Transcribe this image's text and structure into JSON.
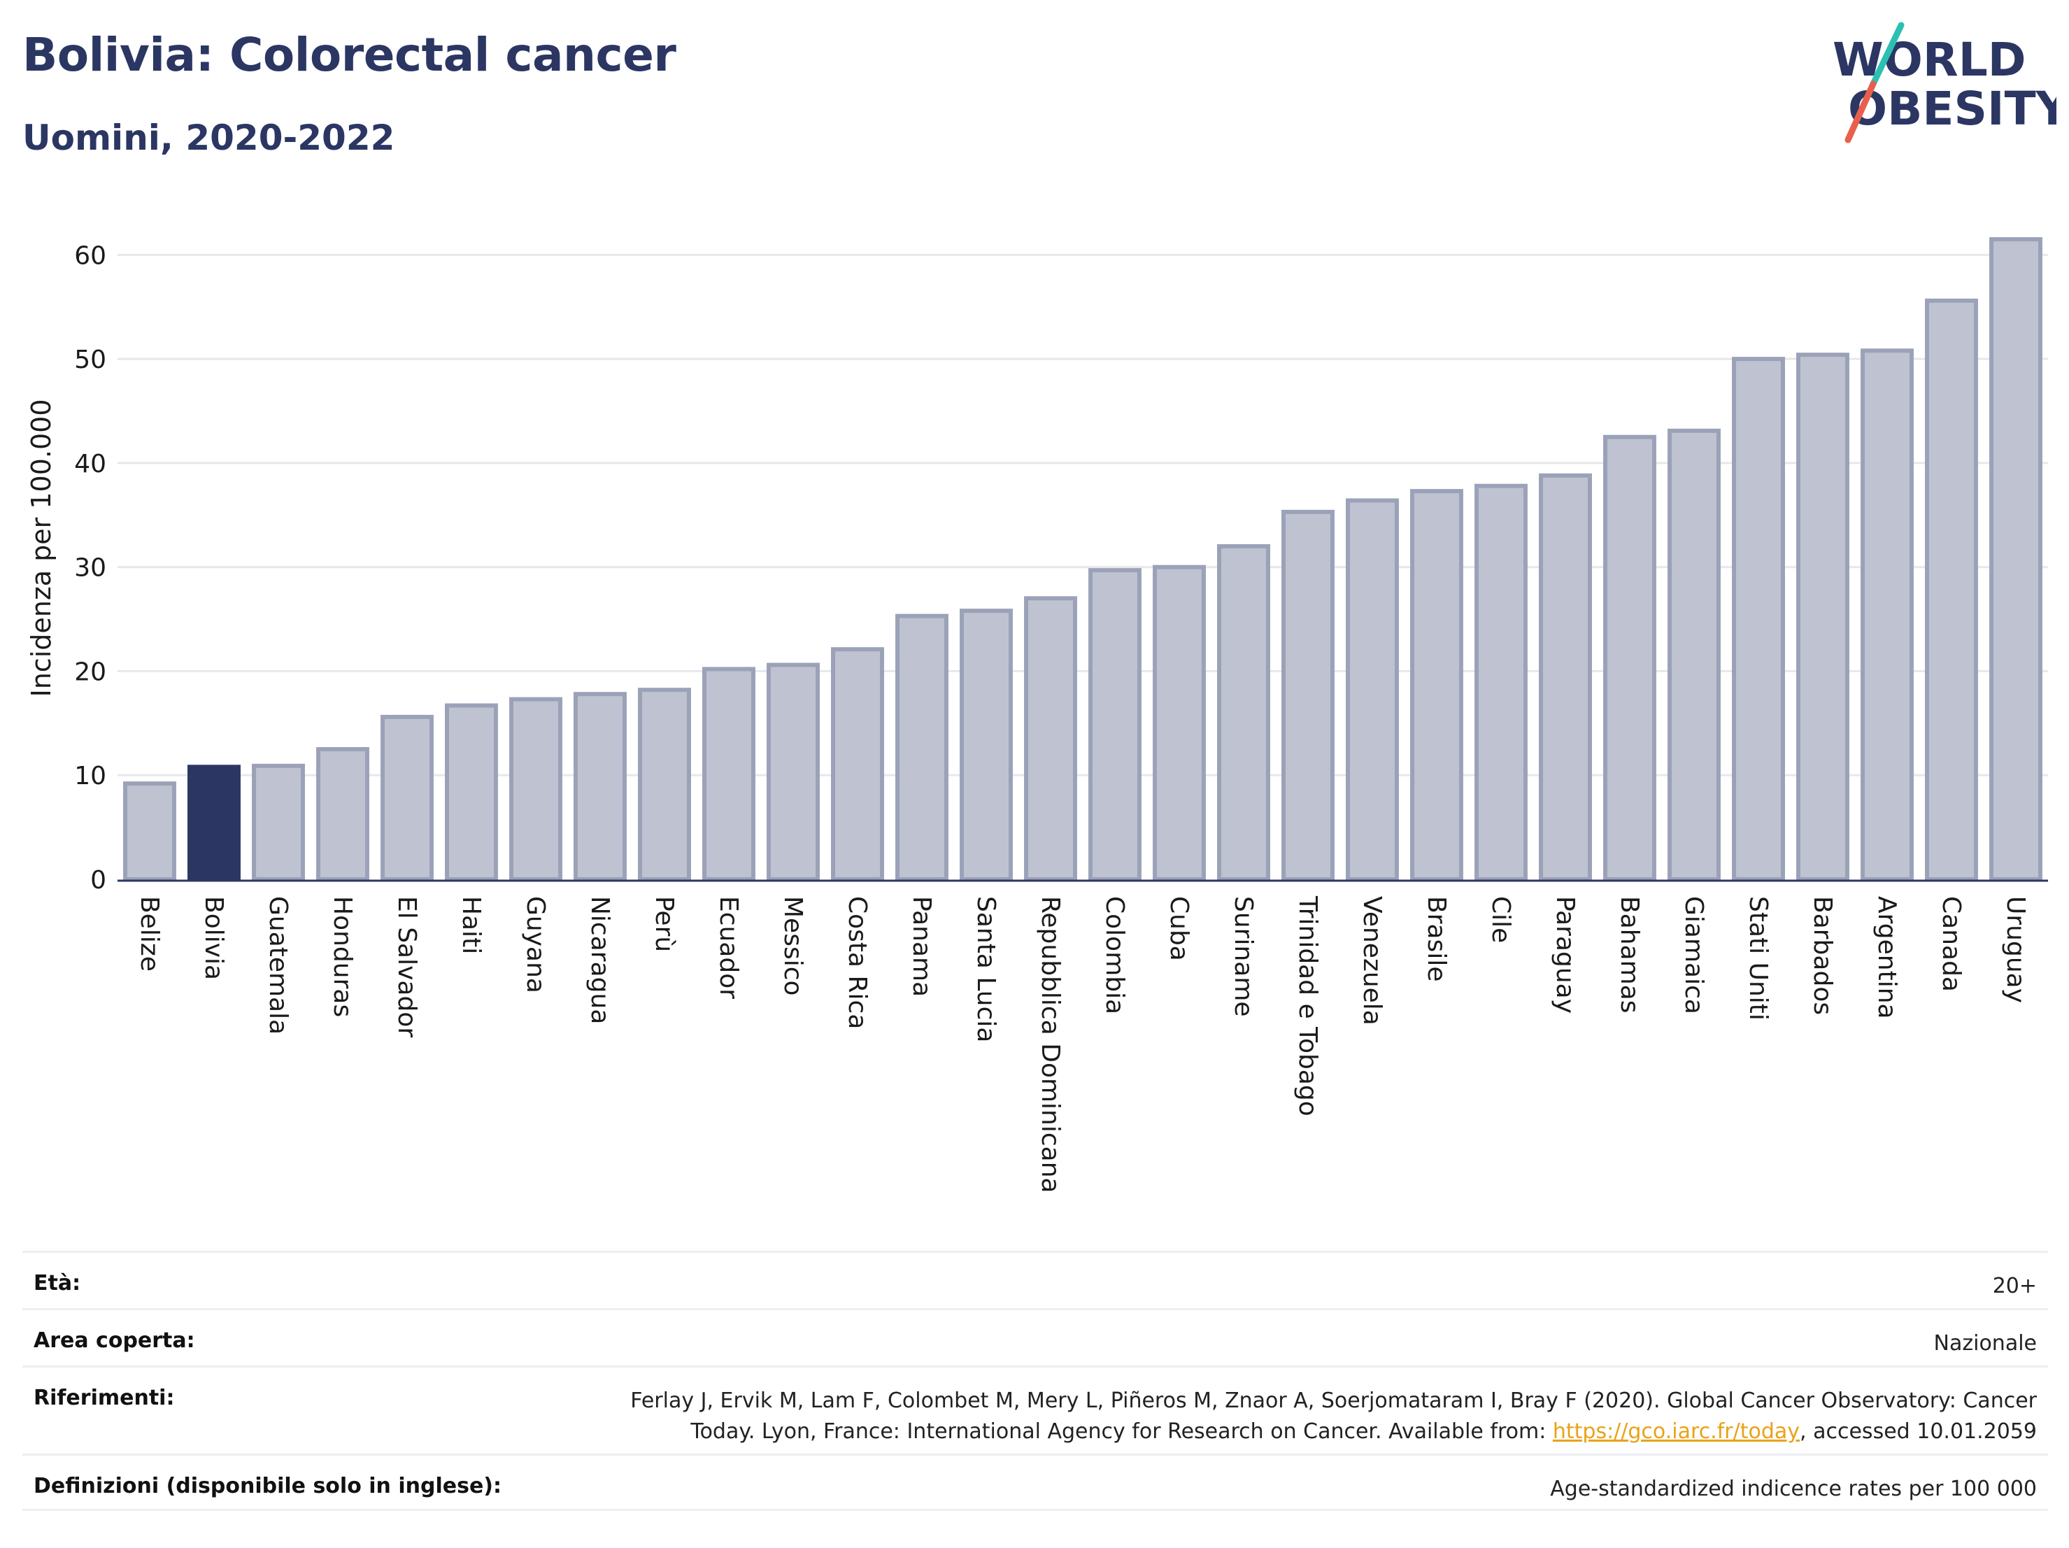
{
  "header": {
    "title": "Bolivia: Colorectal cancer",
    "subtitle": "Uomini, 2020-2022"
  },
  "logo": {
    "line1": "WORLD",
    "line2": "OBESITY",
    "accent_colors": [
      "#2cc0b3",
      "#e8604c"
    ]
  },
  "colors": {
    "highlight": "#2b3663",
    "bar_fill": "#bfc3d1",
    "bar_stroke": "#9ba2b8",
    "title": "#2b3663",
    "link": "#e8a317"
  },
  "chart_data": {
    "type": "bar",
    "ylabel": "Incidenza per 100.000",
    "ylim": [
      0,
      65
    ],
    "yticks": [
      0,
      10,
      20,
      30,
      40,
      50,
      60
    ],
    "grid": true,
    "highlight": "Bolivia",
    "categories": [
      "Belize",
      "Bolivia",
      "Guatemala",
      "Honduras",
      "El Salvador",
      "Haiti",
      "Guyana",
      "Nicaragua",
      "Perù",
      "Ecuador",
      "Messico",
      "Costa Rica",
      "Panama",
      "Santa Lucia",
      "Repubblica Dominicana",
      "Colombia",
      "Cuba",
      "Suriname",
      "Trinidad e Tobago",
      "Venezuela",
      "Brasile",
      "Cile",
      "Paraguay",
      "Bahamas",
      "Giamaica",
      "Stati Uniti",
      "Barbados",
      "Argentina",
      "Canada",
      "Uruguay"
    ],
    "values": [
      9.2,
      10.8,
      10.9,
      12.5,
      15.6,
      16.7,
      17.3,
      17.8,
      18.2,
      20.2,
      20.6,
      22.1,
      25.3,
      25.8,
      27.0,
      29.7,
      30.0,
      32.0,
      35.3,
      36.4,
      37.3,
      37.8,
      38.8,
      42.5,
      43.1,
      50.0,
      50.4,
      50.8,
      55.6,
      61.5
    ]
  },
  "meta": [
    {
      "key": "Età:",
      "value": "20+"
    },
    {
      "key": "Area coperta:",
      "value": "Nazionale"
    },
    {
      "key": "Riferimenti:",
      "value_line1": "Ferlay J, Ervik M, Lam F, Colombet M, Mery L, Piñeros M, Znaor A, Soerjomataram I, Bray F (2020). Global Cancer Observatory: Cancer",
      "value_pre": "Today. Lyon, France: International Agency for Research on Cancer. Available from: ",
      "link": "https://gco.iarc.fr/today",
      "value_post": ", accessed 10.01.2059"
    },
    {
      "key": "Definizioni (disponibile solo in inglese):",
      "value": "Age-standardized indicence rates per 100 000"
    }
  ]
}
